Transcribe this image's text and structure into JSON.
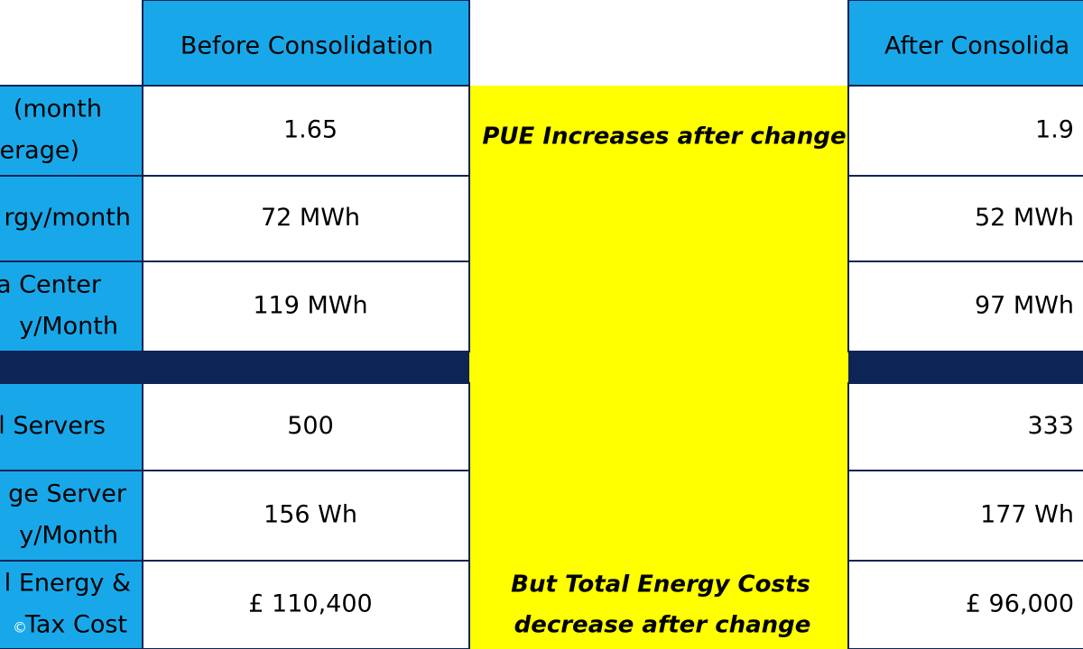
{
  "header": {
    "before": "Before Consolidation",
    "after": "After Consolida"
  },
  "rows": [
    {
      "label": [
        "(month",
        "erage)"
      ],
      "before": "1.65",
      "after": "1.9"
    },
    {
      "label": [
        "rgy/month"
      ],
      "before": "72 MWh",
      "after": "52 MWh"
    },
    {
      "label": [
        "a Center",
        "y/Month"
      ],
      "before": "119 MWh",
      "after": "97 MWh"
    },
    {
      "label": [
        "l Servers"
      ],
      "before": "500",
      "after": "333"
    },
    {
      "label": [
        "ge Server",
        "y/Month"
      ],
      "before": "156 Wh",
      "after": "177 Wh"
    },
    {
      "label": [
        "l Energy &",
        "Tax Cost"
      ],
      "before": "£ 110,400",
      "after": "£ 96,000"
    }
  ],
  "notes": {
    "top": "PUE Increases after change",
    "bottom": [
      "But Total Energy Costs",
      "decrease after change"
    ]
  },
  "watermark": "©"
}
